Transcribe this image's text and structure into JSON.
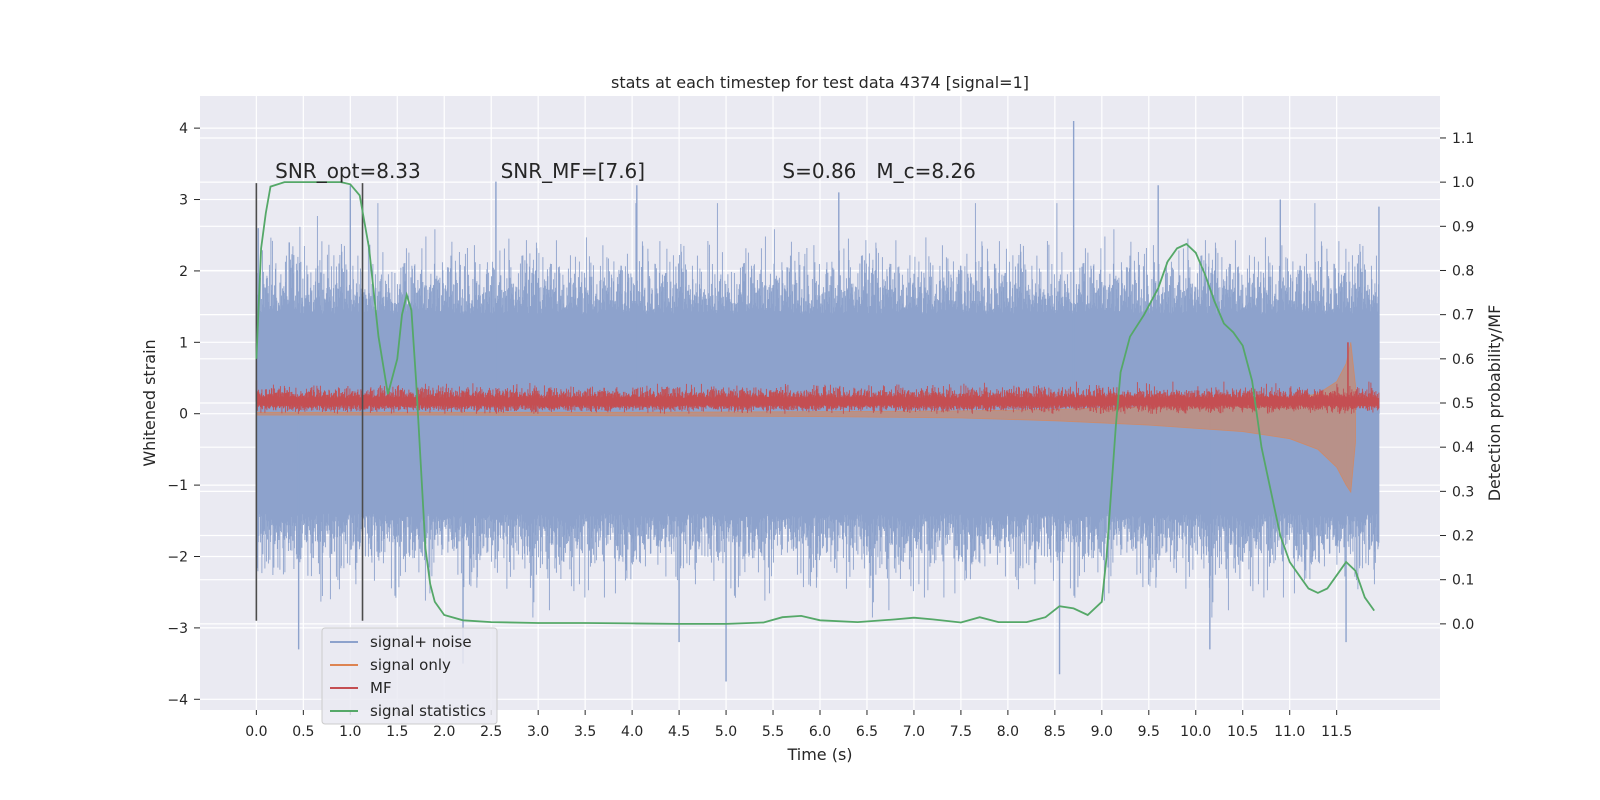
{
  "chart_data": {
    "type": "line",
    "title": "stats at each timestep for test data 4374 [signal=1]",
    "xlabel": "Time (s)",
    "ylabel": "Whitened strain",
    "ylabel_right": "Detection probability/MF",
    "xlim": [
      -0.6,
      12.6
    ],
    "ylim": [
      -4.15,
      4.45
    ],
    "ylim_right": [
      -0.195,
      1.195
    ],
    "x_ticks": [
      "0.0",
      "0.5",
      "1.0",
      "1.5",
      "2.0",
      "2.5",
      "3.0",
      "3.5",
      "4.0",
      "4.5",
      "5.0",
      "5.5",
      "6.0",
      "6.5",
      "7.0",
      "7.5",
      "8.0",
      "8.5",
      "9.0",
      "9.5",
      "10.0",
      "10.5",
      "11.0",
      "11.5"
    ],
    "y_ticks": [
      "4",
      "3",
      "2",
      "1",
      "0",
      "−1",
      "−2",
      "−3",
      "−4"
    ],
    "y_ticks_right": [
      "1.1",
      "1.0",
      "0.9",
      "0.8",
      "0.7",
      "0.6",
      "0.5",
      "0.4",
      "0.3",
      "0.2",
      "0.1",
      "0.0"
    ],
    "grid": true,
    "legend_position": "lower-left",
    "colors": {
      "background": "#eaeaf2",
      "grid": "#ffffff",
      "signal_noise": "#8da2cc",
      "signal_only": "#dd8452",
      "mf": "#c44e52",
      "statistics": "#55a868",
      "vline": "#4c4c4c"
    },
    "annotations": [
      {
        "text": "SNR_opt=8.33",
        "x": 0.2,
        "y": 3.3
      },
      {
        "text": "SNR_MF=[7.6]",
        "x": 2.6,
        "y": 3.3
      },
      {
        "text": "S=0.86",
        "x": 5.6,
        "y": 3.3
      },
      {
        "text": "M_c=8.26",
        "x": 6.6,
        "y": 3.3
      }
    ],
    "vlines": [
      0.0,
      1.13
    ],
    "series": [
      {
        "name": "signal+ noise",
        "axis": "left",
        "envelope": {
          "x": [
            0.0,
            11.95
          ],
          "typical_band": [
            -1.4,
            1.4
          ],
          "peak_band": [
            -3.3,
            4.1
          ]
        },
        "peaks": [
          {
            "x": 0.02,
            "y": 2.6
          },
          {
            "x": 0.35,
            "y": 2.4
          },
          {
            "x": 1.0,
            "y": 3.2
          },
          {
            "x": 2.55,
            "y": 3.25
          },
          {
            "x": 4.05,
            "y": 3.2
          },
          {
            "x": 6.2,
            "y": 3.1
          },
          {
            "x": 8.7,
            "y": 4.1
          },
          {
            "x": 9.6,
            "y": 3.2
          },
          {
            "x": 10.9,
            "y": 3.0
          },
          {
            "x": 11.95,
            "y": 2.9
          },
          {
            "x": 0.45,
            "y": -3.3
          },
          {
            "x": 2.2,
            "y": -3.5
          },
          {
            "x": 4.5,
            "y": -3.2
          },
          {
            "x": 5.0,
            "y": -3.75
          },
          {
            "x": 8.55,
            "y": -3.65
          },
          {
            "x": 10.15,
            "y": -3.3
          },
          {
            "x": 11.6,
            "y": -3.2
          }
        ]
      },
      {
        "name": "signal only",
        "axis": "left",
        "points": [
          [
            0.0,
            0.02
          ],
          [
            2.0,
            0.02
          ],
          [
            4.0,
            0.02
          ],
          [
            6.0,
            0.03
          ],
          [
            7.5,
            0.04
          ],
          [
            8.5,
            0.06
          ],
          [
            9.5,
            0.1
          ],
          [
            10.5,
            0.15
          ],
          [
            11.0,
            0.2
          ],
          [
            11.3,
            0.28
          ],
          [
            11.5,
            0.45
          ],
          [
            11.6,
            0.7
          ],
          [
            11.65,
            1.0
          ],
          [
            11.7,
            0.4
          ]
        ],
        "lower": [
          [
            0.0,
            -0.02
          ],
          [
            2.0,
            -0.02
          ],
          [
            4.0,
            -0.03
          ],
          [
            6.0,
            -0.04
          ],
          [
            7.5,
            -0.06
          ],
          [
            8.5,
            -0.1
          ],
          [
            9.5,
            -0.16
          ],
          [
            10.5,
            -0.25
          ],
          [
            11.0,
            -0.35
          ],
          [
            11.3,
            -0.5
          ],
          [
            11.5,
            -0.75
          ],
          [
            11.6,
            -1.0
          ],
          [
            11.65,
            -1.1
          ],
          [
            11.7,
            -0.4
          ]
        ]
      },
      {
        "name": "MF",
        "axis": "left",
        "center": 0.17,
        "band": [
          0.0,
          0.45
        ],
        "peaks": [
          {
            "x": 0.0,
            "y": 0.47
          },
          {
            "x": 11.62,
            "y": 1.0
          }
        ]
      },
      {
        "name": "signal statistics",
        "axis": "right",
        "points": [
          [
            0.0,
            0.6
          ],
          [
            0.05,
            0.85
          ],
          [
            0.1,
            0.93
          ],
          [
            0.15,
            0.99
          ],
          [
            0.3,
            1.0
          ],
          [
            0.5,
            1.0
          ],
          [
            0.7,
            1.0
          ],
          [
            0.9,
            1.0
          ],
          [
            1.0,
            0.995
          ],
          [
            1.1,
            0.97
          ],
          [
            1.2,
            0.85
          ],
          [
            1.3,
            0.65
          ],
          [
            1.4,
            0.52
          ],
          [
            1.5,
            0.6
          ],
          [
            1.55,
            0.7
          ],
          [
            1.6,
            0.745
          ],
          [
            1.65,
            0.71
          ],
          [
            1.7,
            0.55
          ],
          [
            1.75,
            0.36
          ],
          [
            1.8,
            0.17
          ],
          [
            1.85,
            0.09
          ],
          [
            1.9,
            0.05
          ],
          [
            2.0,
            0.02
          ],
          [
            2.2,
            0.008
          ],
          [
            2.5,
            0.004
          ],
          [
            3.0,
            0.002
          ],
          [
            3.5,
            0.002
          ],
          [
            4.0,
            0.001
          ],
          [
            4.5,
            0.0
          ],
          [
            5.0,
            0.0
          ],
          [
            5.4,
            0.003
          ],
          [
            5.6,
            0.015
          ],
          [
            5.8,
            0.018
          ],
          [
            6.0,
            0.008
          ],
          [
            6.4,
            0.004
          ],
          [
            6.8,
            0.01
          ],
          [
            7.0,
            0.014
          ],
          [
            7.2,
            0.01
          ],
          [
            7.5,
            0.003
          ],
          [
            7.7,
            0.015
          ],
          [
            7.9,
            0.004
          ],
          [
            8.2,
            0.004
          ],
          [
            8.4,
            0.015
          ],
          [
            8.55,
            0.04
          ],
          [
            8.7,
            0.035
          ],
          [
            8.85,
            0.02
          ],
          [
            9.0,
            0.05
          ],
          [
            9.05,
            0.15
          ],
          [
            9.1,
            0.3
          ],
          [
            9.15,
            0.45
          ],
          [
            9.2,
            0.57
          ],
          [
            9.3,
            0.65
          ],
          [
            9.45,
            0.7
          ],
          [
            9.6,
            0.76
          ],
          [
            9.7,
            0.82
          ],
          [
            9.8,
            0.85
          ],
          [
            9.9,
            0.86
          ],
          [
            10.0,
            0.84
          ],
          [
            10.1,
            0.79
          ],
          [
            10.2,
            0.73
          ],
          [
            10.3,
            0.68
          ],
          [
            10.4,
            0.66
          ],
          [
            10.5,
            0.63
          ],
          [
            10.6,
            0.55
          ],
          [
            10.7,
            0.4
          ],
          [
            10.8,
            0.3
          ],
          [
            10.9,
            0.2
          ],
          [
            11.0,
            0.14
          ],
          [
            11.1,
            0.11
          ],
          [
            11.2,
            0.08
          ],
          [
            11.3,
            0.07
          ],
          [
            11.4,
            0.08
          ],
          [
            11.5,
            0.11
          ],
          [
            11.6,
            0.14
          ],
          [
            11.7,
            0.12
          ],
          [
            11.8,
            0.06
          ],
          [
            11.9,
            0.03
          ]
        ]
      }
    ]
  }
}
